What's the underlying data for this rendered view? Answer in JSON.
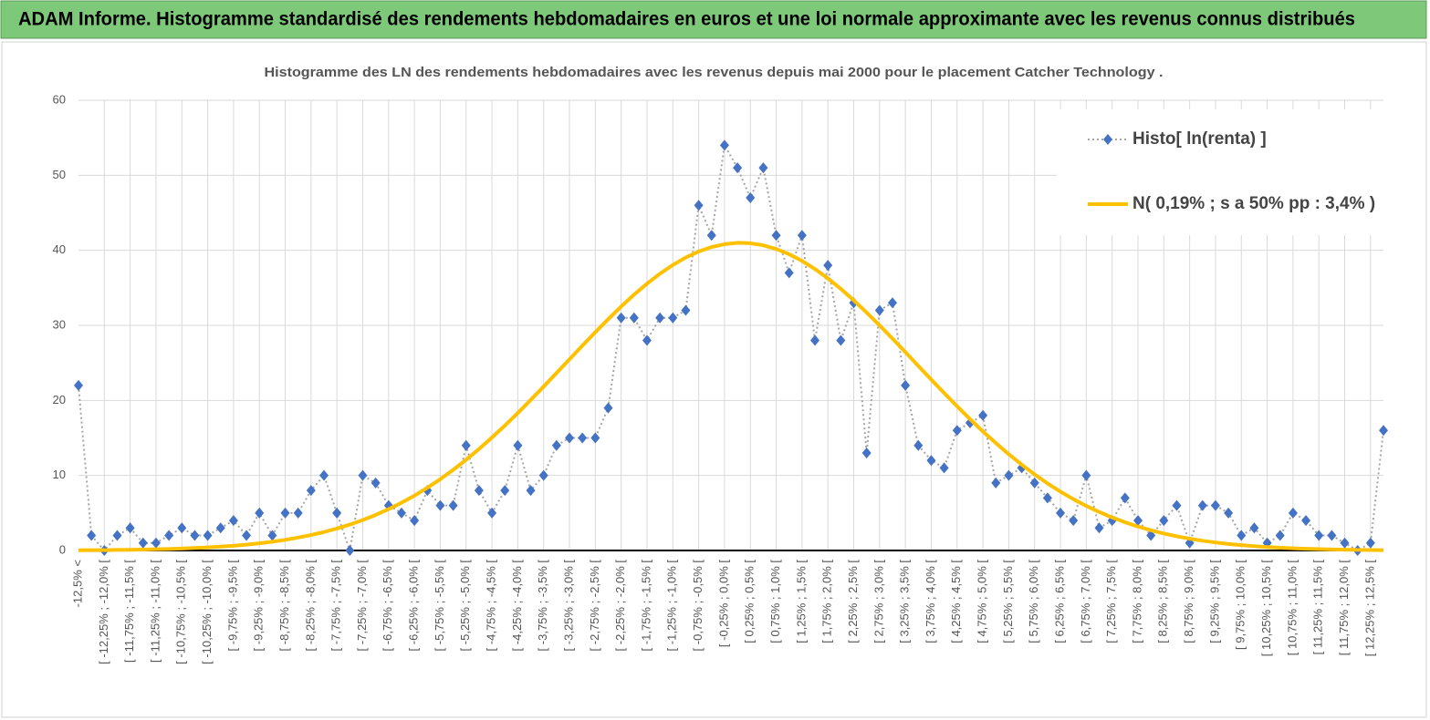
{
  "header": {
    "title": "ADAM Informe. Histogramme standardisé des rendements hebdomadaires en euros et une loi normale approximante avec les revenus connus distribués"
  },
  "chart_data": {
    "type": "line",
    "title": "Histogramme des LN des rendements hebdomadaires avec les revenus depuis mai 2000 pour le placement Catcher Technology .",
    "categories": [
      "-12,5% <",
      null,
      "[ -12,25% ; -12,0% [",
      null,
      "[ -11,75% ; -11,5% [",
      null,
      "[ -11,25% ; -11,0% [",
      null,
      "[ -10,75% ; -10,5% [",
      null,
      "[ -10,25% ; -10,0% [",
      null,
      "[ -9,75% ; -9,5% [",
      null,
      "[ -9,25% ; -9,0% [",
      null,
      "[ -8,75% ; -8,5% [",
      null,
      "[ -8,25% ; -8,0% [",
      null,
      "[ -7,75% ; -7,5% [",
      null,
      "[ -7,25% ; -7,0% [",
      null,
      "[ -6,75% ; -6,5% [",
      null,
      "[ -6,25% ; -6,0% [",
      null,
      "[ -5,75% ; -5,5% [",
      null,
      "[ -5,25% ; -5,0% [",
      null,
      "[ -4,75% ; -4,5% [",
      null,
      "[ -4,25% ; -4,0% [",
      null,
      "[ -3,75% ; -3,5% [",
      null,
      "[ -3,25% ; -3,0% [",
      null,
      "[ -2,75% ; -2,5% [",
      null,
      "[ -2,25% ; -2,0% [",
      null,
      "[ -1,75% ; -1,5% [",
      null,
      "[ -1,25% ; -1,0% [",
      null,
      "[ -0,75% ; -0,5% [",
      null,
      "[ -0,25% ; 0,0% [",
      null,
      "[ 0,25% ; 0,5% [",
      null,
      "[ 0,75% ; 1,0% [",
      null,
      "[ 1,25% ; 1,5% [",
      null,
      "[ 1,75% ; 2,0% [",
      null,
      "[ 2,25% ; 2,5% [",
      null,
      "[ 2,75% ; 3,0% [",
      null,
      "[ 3,25% ; 3,5% [",
      null,
      "[ 3,75% ; 4,0% [",
      null,
      "[ 4,25% ; 4,5% [",
      null,
      "[ 4,75% ; 5,0% [",
      null,
      "[ 5,25% ; 5,5% [",
      null,
      "[ 5,75% ; 6,0% [",
      null,
      "[ 6,25% ; 6,5% [",
      null,
      "[ 6,75% ; 7,0% [",
      null,
      "[ 7,25% ; 7,5% [",
      null,
      "[ 7,75% ; 8,0% [",
      null,
      "[ 8,25% ; 8,5% [",
      null,
      "[ 8,75% ; 9,0% [",
      null,
      "[ 9,25% ; 9,5% [",
      null,
      "[ 9,75% ; 10,0% [",
      null,
      "[ 10,25% ; 10,5% [",
      null,
      "[ 10,75% ; 11,0% [",
      null,
      "[ 11,25% ; 11,5% [",
      null,
      "[ 11,75% ; 12,0% [",
      null,
      "[ 12,25% ; 12,5% [",
      null
    ],
    "series": [
      {
        "name": "Histo[ ln(renta) ]",
        "color": "#4472c4",
        "line_color": "#a6a6a6",
        "values": [
          22,
          2,
          0,
          2,
          3,
          1,
          1,
          2,
          3,
          2,
          2,
          3,
          4,
          2,
          5,
          2,
          5,
          5,
          8,
          10,
          5,
          0,
          10,
          9,
          6,
          5,
          4,
          8,
          6,
          6,
          14,
          8,
          5,
          8,
          14,
          8,
          10,
          14,
          15,
          15,
          15,
          19,
          31,
          31,
          28,
          31,
          31,
          32,
          46,
          42,
          54,
          51,
          47,
          51,
          42,
          37,
          42,
          28,
          38,
          28,
          33,
          13,
          32,
          33,
          22,
          14,
          12,
          11,
          16,
          17,
          18,
          9,
          10,
          11,
          9,
          7,
          5,
          4,
          10,
          3,
          4,
          7,
          4,
          2,
          4,
          6,
          1,
          6,
          6,
          5,
          2,
          3,
          1,
          2,
          5,
          4,
          2,
          2,
          1,
          0,
          1,
          16
        ]
      },
      {
        "name": "N( 0,19% ; s a 50% pp : 3,4% )",
        "color": "#ffc000",
        "values": [
          0.03,
          0.04,
          0.05,
          0.07,
          0.09,
          0.12,
          0.16,
          0.2,
          0.26,
          0.33,
          0.41,
          0.51,
          0.63,
          0.78,
          0.96,
          1.17,
          1.42,
          1.72,
          2.06,
          2.46,
          2.92,
          3.45,
          4.05,
          4.74,
          5.5,
          6.36,
          7.31,
          8.36,
          9.5,
          10.75,
          12.09,
          13.53,
          15.06,
          16.64,
          18.32,
          20.06,
          21.84,
          23.65,
          25.48,
          27.3,
          29.09,
          30.83,
          32.51,
          34.1,
          35.55,
          36.88,
          38.05,
          39.04,
          39.84,
          40.44,
          40.82,
          41.0,
          40.94,
          40.67,
          40.18,
          39.48,
          38.59,
          37.51,
          36.26,
          34.87,
          33.34,
          31.71,
          30.0,
          28.24,
          26.43,
          24.6,
          22.78,
          20.98,
          19.22,
          17.51,
          15.86,
          14.32,
          12.83,
          11.44,
          10.14,
          8.94,
          7.84,
          6.84,
          5.94,
          5.13,
          4.4,
          3.76,
          3.19,
          2.69,
          2.26,
          1.89,
          1.57,
          1.3,
          1.07,
          0.87,
          0.71,
          0.57,
          0.46,
          0.37,
          0.29,
          0.23,
          0.18,
          0.14,
          0.11,
          0.08,
          0.06,
          0.05
        ]
      }
    ],
    "ylim": [
      0,
      60
    ],
    "yticks": [
      0,
      10,
      20,
      30,
      40,
      50,
      60
    ],
    "grid": true,
    "legend": "top-right"
  }
}
